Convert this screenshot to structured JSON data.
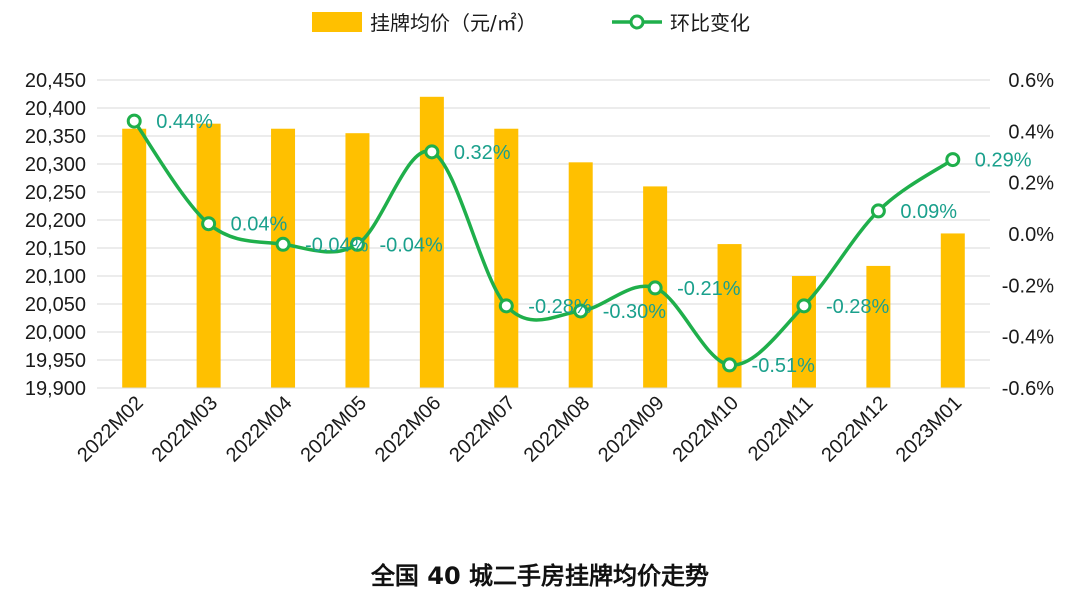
{
  "chart_data": {
    "type": "bar+line",
    "title": "全国 40 城二手房挂牌均价走势",
    "categories": [
      "2022M02",
      "2022M03",
      "2022M04",
      "2022M05",
      "2022M06",
      "2022M07",
      "2022M08",
      "2022M09",
      "2022M10",
      "2022M11",
      "2022M12",
      "2023M01"
    ],
    "series": [
      {
        "name": "挂牌均价（元/㎡）",
        "type": "bar",
        "axis": "left",
        "color": "#FFC000",
        "values": [
          20363,
          20372,
          20363,
          20355,
          20420,
          20363,
          20303,
          20260,
          20157,
          20100,
          20118,
          20176
        ]
      },
      {
        "name": "环比变化",
        "type": "line",
        "axis": "right",
        "color": "#1FAF4B",
        "values": [
          0.44,
          0.04,
          -0.04,
          -0.04,
          0.32,
          -0.28,
          -0.3,
          -0.21,
          -0.51,
          -0.28,
          0.09,
          0.29
        ],
        "labels": [
          "0.44%",
          "0.04%",
          "-0.04%",
          "-0.04%",
          "0.32%",
          "-0.28%",
          "-0.30%",
          "-0.21%",
          "-0.51%",
          "-0.28%",
          "0.09%",
          "0.29%"
        ],
        "label_color": "#1AA08C"
      }
    ],
    "left_axis": {
      "ylim": [
        19900,
        20450
      ],
      "ticks": [
        "20,450",
        "20,400",
        "20,350",
        "20,300",
        "20,250",
        "20,200",
        "20,150",
        "20,100",
        "20,050",
        "20,000",
        "19,950",
        "19,900"
      ]
    },
    "right_axis": {
      "ylim": [
        -0.6,
        0.6
      ],
      "ticks": [
        "0.6%",
        "0.4%",
        "0.2%",
        "0.0%",
        "-0.2%",
        "-0.4%",
        "-0.6%"
      ]
    },
    "grid": true,
    "legend": "top-center"
  }
}
